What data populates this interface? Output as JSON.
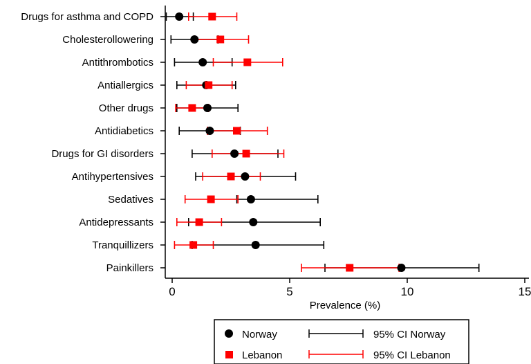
{
  "chart_data": {
    "type": "scatter",
    "xlabel": "Prevalence (%)",
    "xlim": [
      0,
      15
    ],
    "xticks": [
      "0",
      "5",
      "10",
      "15"
    ],
    "grid": false,
    "legend_placement": "bottom",
    "categories": [
      "Drugs for asthma and COPD",
      "Cholesterollowering",
      "Antithrombotics",
      "Antiallergics",
      "Other drugs",
      "Antidiabetics",
      "Drugs for GI disorders",
      "Antihypertensives",
      "Sedatives",
      "Antidepressants",
      "Tranquillizers",
      "Painkillers"
    ],
    "series": [
      {
        "name": "Norway",
        "ci_name": "95% CI Norway",
        "marker": "circle",
        "color": "#000000",
        "values": [
          0.3,
          0.95,
          1.3,
          1.45,
          1.5,
          1.6,
          2.65,
          3.1,
          3.35,
          3.45,
          3.55,
          9.75
        ],
        "ci_lower": [
          -0.25,
          -0.05,
          0.1,
          0.2,
          0.2,
          0.3,
          0.85,
          1.0,
          2.75,
          0.7,
          0.85,
          6.5
        ],
        "ci_upper": [
          0.9,
          1.95,
          2.55,
          2.7,
          2.8,
          2.9,
          4.5,
          5.25,
          6.2,
          6.3,
          6.45,
          13.05
        ]
      },
      {
        "name": "Lebanon",
        "ci_name": "95% CI Lebanon",
        "marker": "square",
        "color": "#ff0000",
        "values": [
          1.7,
          2.05,
          3.2,
          1.55,
          0.85,
          2.75,
          3.15,
          2.5,
          1.65,
          1.15,
          0.9,
          7.55
        ],
        "ci_lower": [
          0.7,
          0.95,
          1.75,
          0.6,
          0.15,
          1.5,
          1.7,
          1.3,
          0.55,
          0.2,
          0.1,
          5.5
        ],
        "ci_upper": [
          2.75,
          3.25,
          4.7,
          2.55,
          1.55,
          4.05,
          4.75,
          3.75,
          2.8,
          2.1,
          1.75,
          9.65
        ]
      }
    ]
  }
}
